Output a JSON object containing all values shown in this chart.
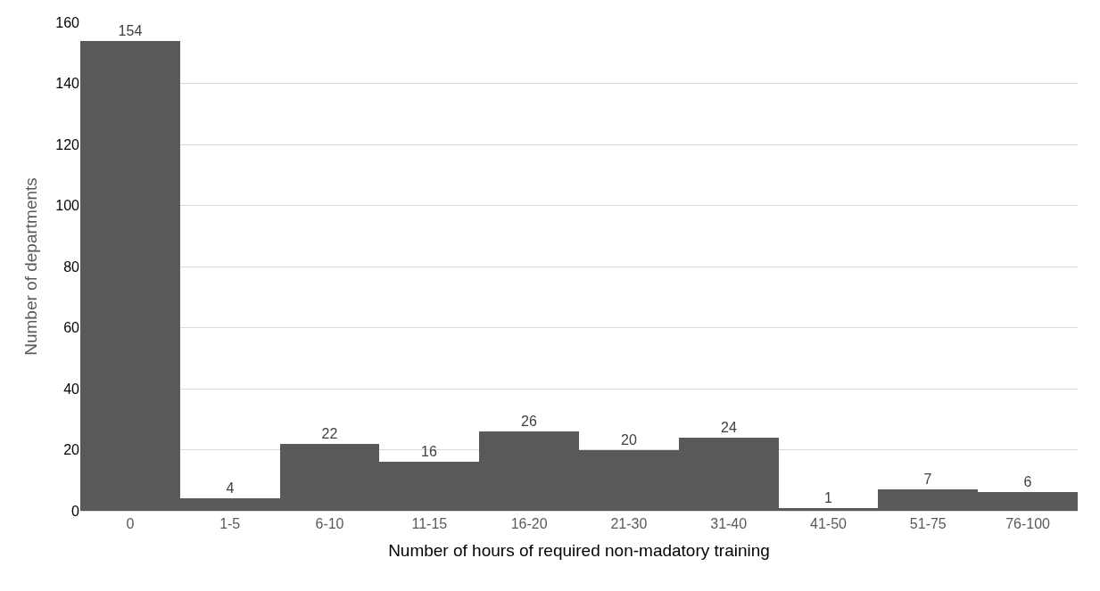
{
  "chart_data": {
    "type": "bar",
    "xlabel": "Number of hours of required non-madatory training",
    "ylabel": "Number of departments",
    "categories": [
      "0",
      "1-5",
      "6-10",
      "11-15",
      "16-20",
      "21-30",
      "31-40",
      "41-50",
      "51-75",
      "76-100"
    ],
    "values": [
      154,
      4,
      22,
      16,
      26,
      20,
      24,
      1,
      7,
      6
    ],
    "color": "#595959",
    "ylim": [
      0,
      160
    ],
    "yticks": [
      0,
      20,
      40,
      60,
      80,
      100,
      120,
      140,
      160
    ],
    "grid": "y",
    "data_labels": true,
    "legend": false
  }
}
